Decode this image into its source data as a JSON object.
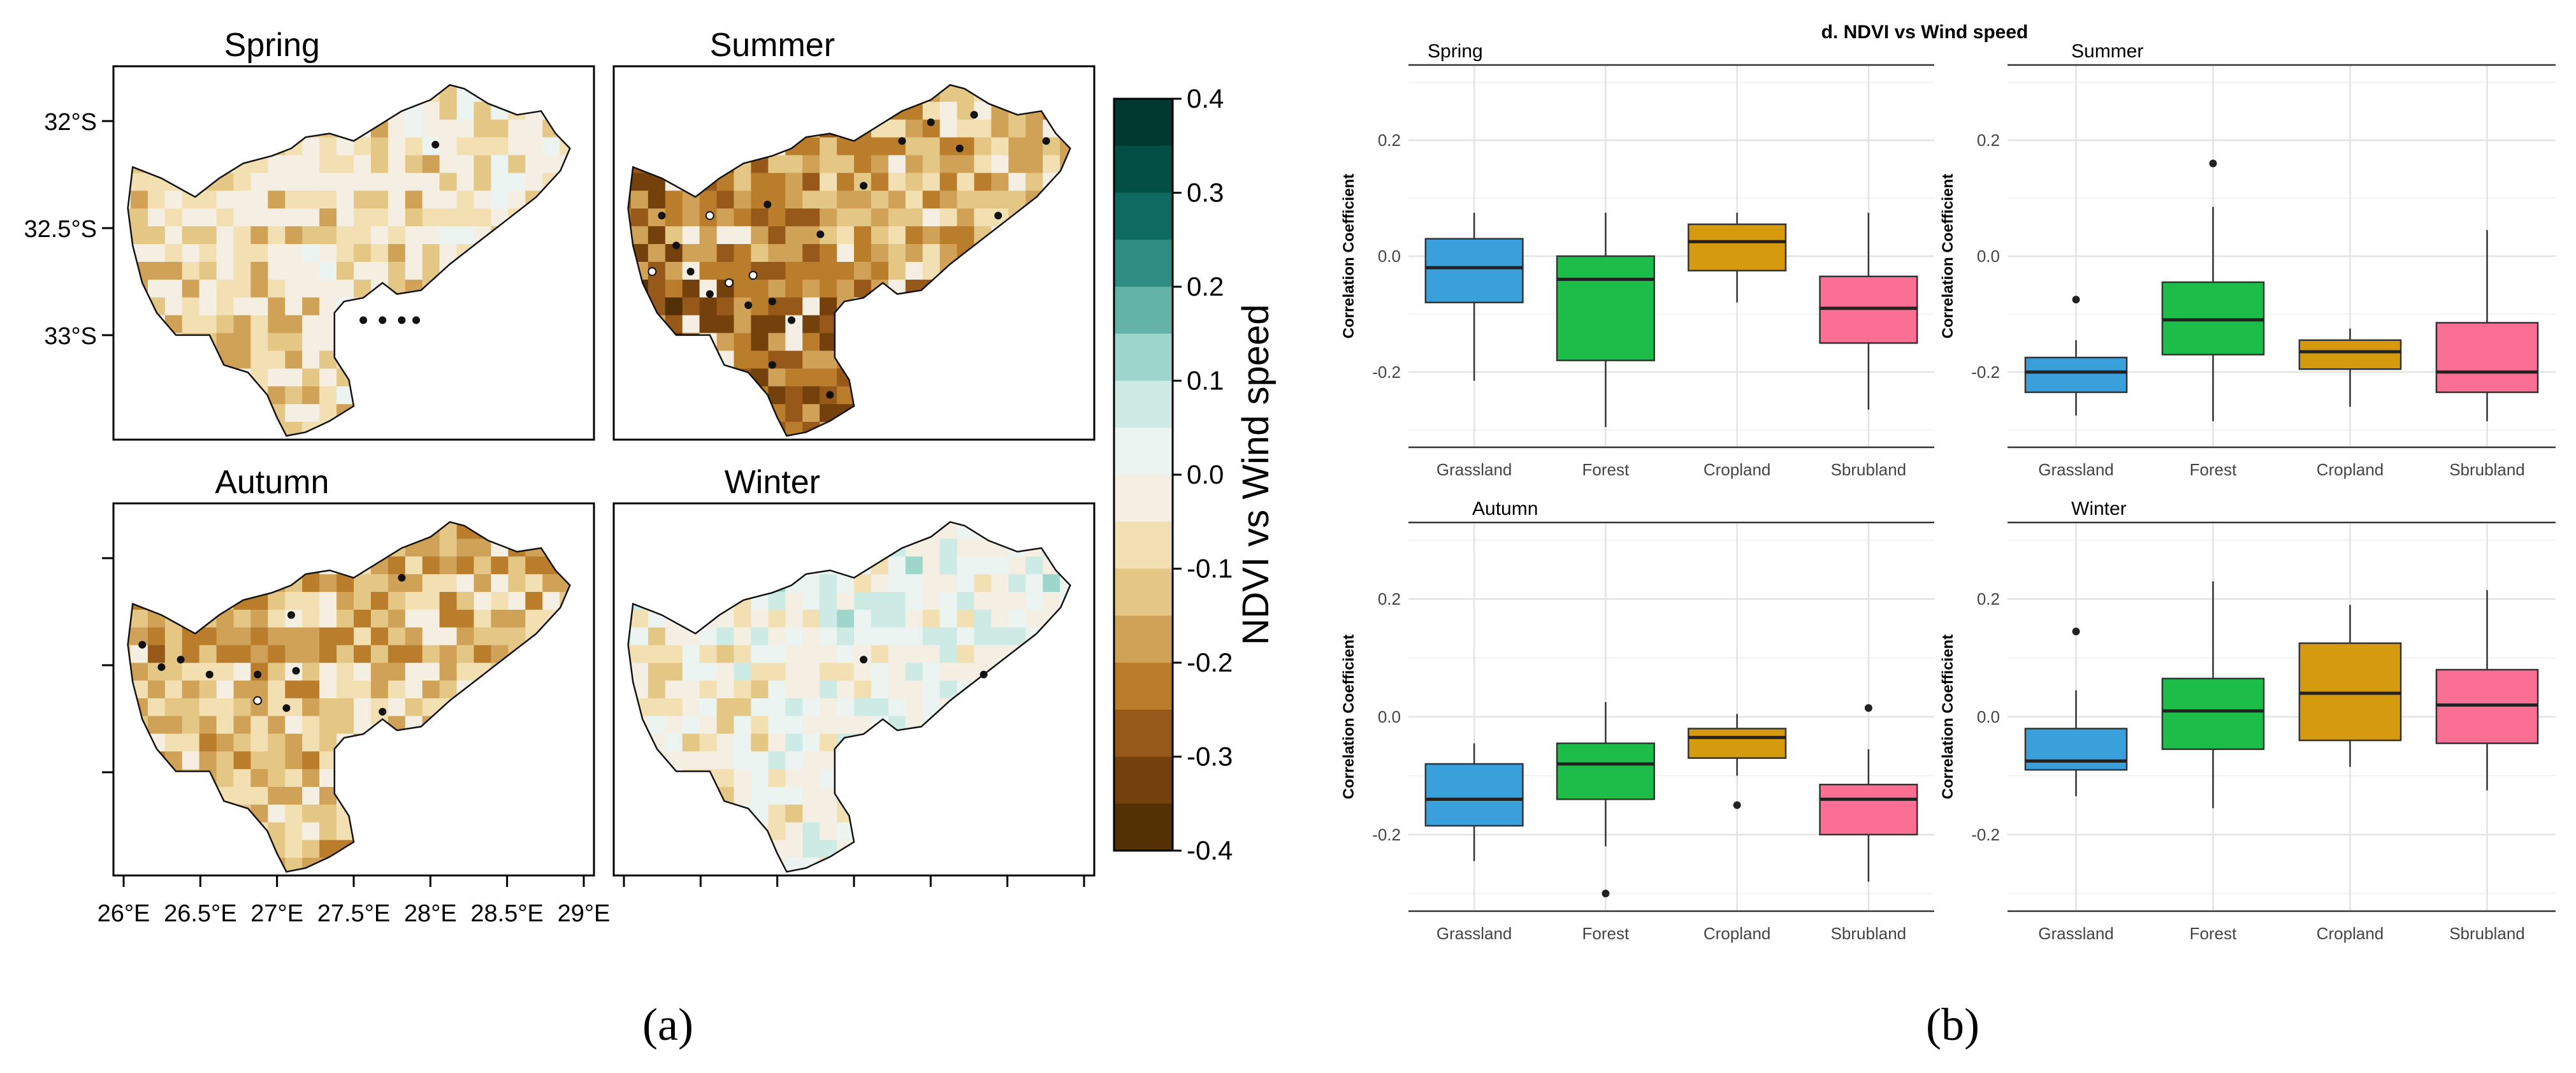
{
  "figure": {
    "caption_a": "(a)",
    "caption_b": "(b)"
  },
  "maps": {
    "panels": [
      {
        "title": "Spring"
      },
      {
        "title": "Summer"
      },
      {
        "title": "Autumn"
      },
      {
        "title": "Winter"
      }
    ],
    "lat_ticks": [
      "32°S",
      "32.5°S",
      "33°S"
    ],
    "lon_ticks": [
      "26°E",
      "26.5°E",
      "27°E",
      "27.5°E",
      "28°E",
      "28.5°E",
      "29°E"
    ],
    "colorbar": {
      "label": "NDVI vs Wind speed",
      "ticks": [
        "0.4",
        "0.3",
        "0.2",
        "0.1",
        "0.0",
        "-0.1",
        "-0.2",
        "-0.3",
        "-0.4"
      ],
      "colors": [
        "#00372e",
        "#044f45",
        "#0f6b62",
        "#2e8c82",
        "#63b3a8",
        "#9fd6cc",
        "#cdeae5",
        "#ecf4f1",
        "#f4efe2",
        "#f3e0b2",
        "#e4c685",
        "#cfa257",
        "#b97d2c",
        "#97591a",
        "#74410d",
        "#543005"
      ]
    }
  },
  "chart_data": {
    "type": "box",
    "title": "d. NDVI vs Wind speed",
    "ylabel": "Correlation Coefficient",
    "ylim": [
      -0.33,
      0.33
    ],
    "y_ticks": [
      "0.2",
      "0.0",
      "-0.2"
    ],
    "categories": [
      "Grassland",
      "Forest",
      "Cropland",
      "Sbrubland"
    ],
    "colors": [
      "#3aa0dc",
      "#1cbd49",
      "#d69a0f",
      "#fa6f93"
    ],
    "panels": [
      {
        "name": "Spring",
        "boxes": [
          {
            "q1": -0.08,
            "median": -0.02,
            "q3": 0.03,
            "lo": -0.215,
            "hi": 0.075,
            "outliers": []
          },
          {
            "q1": -0.18,
            "median": -0.04,
            "q3": 0.0,
            "lo": -0.295,
            "hi": 0.075,
            "outliers": []
          },
          {
            "q1": -0.025,
            "median": 0.025,
            "q3": 0.055,
            "lo": -0.08,
            "hi": 0.075,
            "outliers": []
          },
          {
            "q1": -0.15,
            "median": -0.09,
            "q3": -0.035,
            "lo": -0.265,
            "hi": 0.075,
            "outliers": []
          }
        ]
      },
      {
        "name": "Summer",
        "boxes": [
          {
            "q1": -0.235,
            "median": -0.2,
            "q3": -0.175,
            "lo": -0.275,
            "hi": -0.145,
            "outliers": [
              -0.075
            ]
          },
          {
            "q1": -0.17,
            "median": -0.11,
            "q3": -0.045,
            "lo": -0.285,
            "hi": 0.085,
            "outliers": [
              0.16
            ]
          },
          {
            "q1": -0.195,
            "median": -0.165,
            "q3": -0.145,
            "lo": -0.26,
            "hi": -0.125,
            "outliers": []
          },
          {
            "q1": -0.235,
            "median": -0.2,
            "q3": -0.115,
            "lo": -0.285,
            "hi": 0.045,
            "outliers": []
          }
        ]
      },
      {
        "name": "Autumn",
        "boxes": [
          {
            "q1": -0.185,
            "median": -0.14,
            "q3": -0.08,
            "lo": -0.245,
            "hi": -0.045,
            "outliers": []
          },
          {
            "q1": -0.14,
            "median": -0.08,
            "q3": -0.045,
            "lo": -0.22,
            "hi": 0.025,
            "outliers": [
              -0.3
            ]
          },
          {
            "q1": -0.07,
            "median": -0.035,
            "q3": -0.02,
            "lo": -0.1,
            "hi": 0.005,
            "outliers": [
              -0.15
            ]
          },
          {
            "q1": -0.2,
            "median": -0.14,
            "q3": -0.115,
            "lo": -0.28,
            "hi": -0.055,
            "outliers": [
              0.015
            ]
          }
        ]
      },
      {
        "name": "Winter",
        "boxes": [
          {
            "q1": -0.09,
            "median": -0.075,
            "q3": -0.02,
            "lo": -0.135,
            "hi": 0.045,
            "outliers": [
              0.145
            ]
          },
          {
            "q1": -0.055,
            "median": 0.01,
            "q3": 0.065,
            "lo": -0.155,
            "hi": 0.23,
            "outliers": []
          },
          {
            "q1": -0.04,
            "median": 0.04,
            "q3": 0.125,
            "lo": -0.085,
            "hi": 0.19,
            "outliers": []
          },
          {
            "q1": -0.045,
            "median": 0.02,
            "q3": 0.08,
            "lo": -0.125,
            "hi": 0.215,
            "outliers": []
          }
        ]
      }
    ]
  }
}
